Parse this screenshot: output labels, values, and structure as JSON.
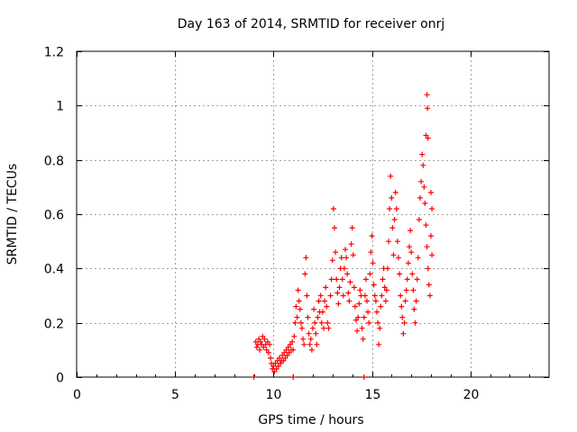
{
  "chart_data": {
    "type": "scatter",
    "title": "Day 163 of 2014, SRMTID for receiver onrj",
    "xlabel": "GPS time / hours",
    "ylabel": "SRMTID / TECUs",
    "xlim": [
      0,
      24
    ],
    "ylim": [
      0,
      1.2
    ],
    "xticks": [
      0,
      5,
      10,
      15,
      20
    ],
    "yticks": [
      0,
      0.2,
      0.4,
      0.6,
      0.8,
      1,
      1.2
    ],
    "xtick_labels": [
      "0",
      "5",
      "10",
      "15",
      "20"
    ],
    "ytick_labels": [
      "0",
      "0.2",
      "0.4",
      "0.6",
      "0.8",
      "1",
      "1.2"
    ],
    "grid": true,
    "marker": "+",
    "series": [
      {
        "name": "SRMTID",
        "color": "#ff0000",
        "points": [
          [
            9.0,
            0.0
          ],
          [
            11.0,
            0.0
          ],
          [
            14.6,
            0.0
          ],
          [
            9.1,
            0.13
          ],
          [
            9.15,
            0.11
          ],
          [
            9.2,
            0.12
          ],
          [
            9.25,
            0.14
          ],
          [
            9.3,
            0.1
          ],
          [
            9.35,
            0.13
          ],
          [
            9.4,
            0.12
          ],
          [
            9.45,
            0.15
          ],
          [
            9.5,
            0.11
          ],
          [
            9.55,
            0.14
          ],
          [
            9.6,
            0.12
          ],
          [
            9.65,
            0.1
          ],
          [
            9.7,
            0.13
          ],
          [
            9.75,
            0.09
          ],
          [
            9.8,
            0.12
          ],
          [
            9.85,
            0.07
          ],
          [
            9.9,
            0.05
          ],
          [
            9.95,
            0.03
          ],
          [
            10.0,
            0.04
          ],
          [
            10.05,
            0.02
          ],
          [
            10.1,
            0.05
          ],
          [
            10.15,
            0.03
          ],
          [
            10.2,
            0.06
          ],
          [
            10.25,
            0.04
          ],
          [
            10.3,
            0.07
          ],
          [
            10.35,
            0.05
          ],
          [
            10.4,
            0.06
          ],
          [
            10.45,
            0.08
          ],
          [
            10.5,
            0.06
          ],
          [
            10.55,
            0.09
          ],
          [
            10.6,
            0.07
          ],
          [
            10.65,
            0.1
          ],
          [
            10.7,
            0.08
          ],
          [
            10.75,
            0.11
          ],
          [
            10.8,
            0.09
          ],
          [
            10.85,
            0.12
          ],
          [
            10.9,
            0.1
          ],
          [
            10.95,
            0.13
          ],
          [
            11.0,
            0.1
          ],
          [
            11.05,
            0.15
          ],
          [
            11.1,
            0.2
          ],
          [
            11.15,
            0.26
          ],
          [
            11.2,
            0.22
          ],
          [
            11.25,
            0.32
          ],
          [
            11.3,
            0.28
          ],
          [
            11.35,
            0.25
          ],
          [
            11.4,
            0.2
          ],
          [
            11.45,
            0.18
          ],
          [
            11.5,
            0.14
          ],
          [
            11.55,
            0.12
          ],
          [
            11.6,
            0.38
          ],
          [
            11.65,
            0.44
          ],
          [
            11.7,
            0.3
          ],
          [
            11.75,
            0.22
          ],
          [
            11.8,
            0.16
          ],
          [
            11.85,
            0.12
          ],
          [
            11.9,
            0.14
          ],
          [
            11.95,
            0.1
          ],
          [
            12.0,
            0.18
          ],
          [
            12.05,
            0.25
          ],
          [
            12.1,
            0.2
          ],
          [
            12.15,
            0.16
          ],
          [
            12.2,
            0.12
          ],
          [
            12.25,
            0.22
          ],
          [
            12.3,
            0.28
          ],
          [
            12.35,
            0.24
          ],
          [
            12.4,
            0.3
          ],
          [
            12.45,
            0.2
          ],
          [
            12.5,
            0.24
          ],
          [
            12.55,
            0.18
          ],
          [
            12.6,
            0.28
          ],
          [
            12.65,
            0.33
          ],
          [
            12.7,
            0.26
          ],
          [
            12.75,
            0.2
          ],
          [
            12.8,
            0.18
          ],
          [
            12.9,
            0.3
          ],
          [
            12.95,
            0.36
          ],
          [
            13.0,
            0.43
          ],
          [
            13.05,
            0.62
          ],
          [
            13.1,
            0.55
          ],
          [
            13.15,
            0.46
          ],
          [
            13.2,
            0.36
          ],
          [
            13.25,
            0.31
          ],
          [
            13.3,
            0.27
          ],
          [
            13.35,
            0.33
          ],
          [
            13.4,
            0.4
          ],
          [
            13.45,
            0.44
          ],
          [
            13.5,
            0.36
          ],
          [
            13.55,
            0.3
          ],
          [
            13.6,
            0.4
          ],
          [
            13.65,
            0.47
          ],
          [
            13.7,
            0.44
          ],
          [
            13.75,
            0.38
          ],
          [
            13.8,
            0.31
          ],
          [
            13.85,
            0.28
          ],
          [
            13.9,
            0.35
          ],
          [
            13.95,
            0.49
          ],
          [
            14.0,
            0.55
          ],
          [
            14.05,
            0.45
          ],
          [
            14.1,
            0.33
          ],
          [
            14.15,
            0.26
          ],
          [
            14.2,
            0.21
          ],
          [
            14.25,
            0.17
          ],
          [
            14.3,
            0.22
          ],
          [
            14.35,
            0.27
          ],
          [
            14.4,
            0.32
          ],
          [
            14.45,
            0.3
          ],
          [
            14.5,
            0.18
          ],
          [
            14.55,
            0.14
          ],
          [
            14.6,
            0.22
          ],
          [
            14.65,
            0.3
          ],
          [
            14.7,
            0.36
          ],
          [
            14.75,
            0.28
          ],
          [
            14.8,
            0.24
          ],
          [
            14.85,
            0.2
          ],
          [
            14.9,
            0.38
          ],
          [
            14.95,
            0.46
          ],
          [
            15.0,
            0.52
          ],
          [
            15.05,
            0.42
          ],
          [
            15.1,
            0.34
          ],
          [
            15.15,
            0.3
          ],
          [
            15.2,
            0.28
          ],
          [
            15.25,
            0.24
          ],
          [
            15.3,
            0.2
          ],
          [
            15.35,
            0.12
          ],
          [
            15.4,
            0.18
          ],
          [
            15.45,
            0.26
          ],
          [
            15.5,
            0.3
          ],
          [
            15.55,
            0.36
          ],
          [
            15.6,
            0.4
          ],
          [
            15.65,
            0.33
          ],
          [
            15.7,
            0.28
          ],
          [
            15.75,
            0.32
          ],
          [
            15.8,
            0.4
          ],
          [
            15.85,
            0.5
          ],
          [
            15.9,
            0.62
          ],
          [
            15.95,
            0.74
          ],
          [
            16.0,
            0.66
          ],
          [
            16.05,
            0.55
          ],
          [
            16.1,
            0.45
          ],
          [
            16.15,
            0.58
          ],
          [
            16.2,
            0.68
          ],
          [
            16.25,
            0.62
          ],
          [
            16.3,
            0.5
          ],
          [
            16.35,
            0.44
          ],
          [
            16.4,
            0.38
          ],
          [
            16.45,
            0.3
          ],
          [
            16.5,
            0.26
          ],
          [
            16.55,
            0.22
          ],
          [
            16.6,
            0.16
          ],
          [
            16.65,
            0.2
          ],
          [
            16.7,
            0.28
          ],
          [
            16.75,
            0.32
          ],
          [
            16.8,
            0.36
          ],
          [
            16.85,
            0.42
          ],
          [
            16.9,
            0.48
          ],
          [
            16.95,
            0.54
          ],
          [
            17.0,
            0.46
          ],
          [
            17.05,
            0.38
          ],
          [
            17.1,
            0.32
          ],
          [
            17.15,
            0.25
          ],
          [
            17.2,
            0.2
          ],
          [
            17.25,
            0.28
          ],
          [
            17.3,
            0.36
          ],
          [
            17.35,
            0.44
          ],
          [
            17.4,
            0.58
          ],
          [
            17.45,
            0.66
          ],
          [
            17.5,
            0.72
          ],
          [
            17.55,
            0.82
          ],
          [
            17.6,
            0.78
          ],
          [
            17.65,
            0.7
          ],
          [
            17.7,
            0.64
          ],
          [
            17.75,
            0.56
          ],
          [
            17.8,
            0.48
          ],
          [
            17.85,
            0.4
          ],
          [
            17.9,
            0.34
          ],
          [
            17.95,
            0.3
          ],
          [
            17.75,
            0.89
          ],
          [
            17.8,
            1.04
          ],
          [
            17.82,
            0.99
          ],
          [
            17.85,
            0.88
          ],
          [
            18.0,
            0.68
          ],
          [
            18.05,
            0.62
          ],
          [
            18.0,
            0.52
          ],
          [
            18.05,
            0.45
          ]
        ]
      }
    ]
  }
}
